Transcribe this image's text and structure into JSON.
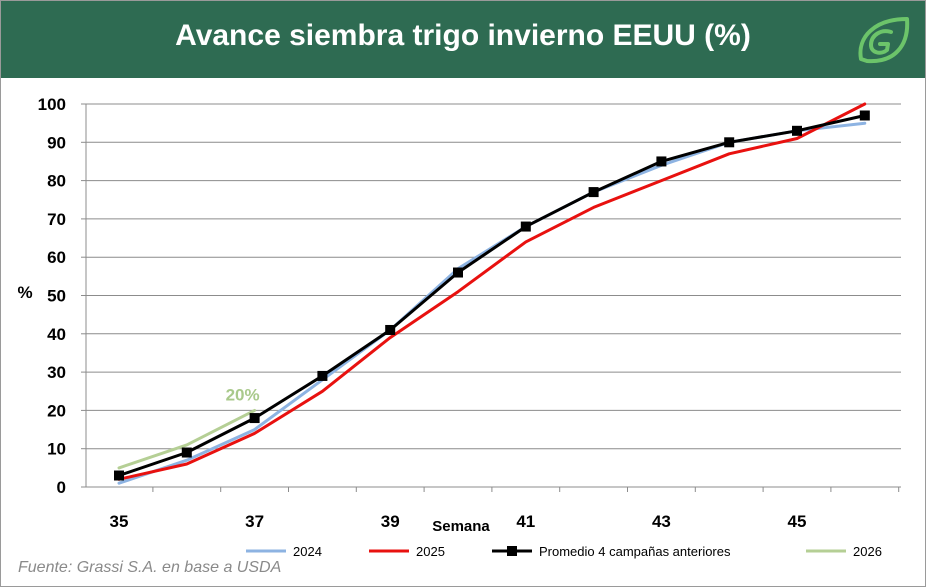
{
  "header": {
    "title": "Avance siembra trigo invierno EEUU (%)"
  },
  "chart_data": {
    "type": "line",
    "xlabel": "Semana",
    "ylabel": "%",
    "xlim": [
      35,
      46
    ],
    "ylim": [
      0,
      100
    ],
    "xticks": [
      "35",
      "37",
      "39",
      "41",
      "43",
      "45"
    ],
    "yticks": [
      "0",
      "10",
      "20",
      "30",
      "40",
      "50",
      "60",
      "70",
      "80",
      "90",
      "100"
    ],
    "grid": "horizontal",
    "legend_position": "bottom",
    "series": [
      {
        "name": "2024",
        "color": "#8db3e2",
        "marker": "none",
        "x": [
          35,
          36,
          37,
          38,
          39,
          40,
          41,
          42,
          43,
          44,
          45,
          46
        ],
        "y": [
          1,
          7,
          15,
          28,
          41,
          57,
          68,
          77,
          84,
          90,
          93,
          95
        ]
      },
      {
        "name": "2025",
        "color": "#e8110f",
        "marker": "none",
        "x": [
          35,
          36,
          37,
          38,
          39,
          40,
          41,
          42,
          43,
          44,
          45,
          46
        ],
        "y": [
          2,
          6,
          14,
          25,
          39,
          51,
          64,
          73,
          80,
          87,
          91,
          100
        ]
      },
      {
        "name": "Promedio 4 campañas anteriores",
        "color": "#000000",
        "marker": "square",
        "x": [
          35,
          36,
          37,
          38,
          39,
          40,
          41,
          42,
          43,
          44,
          45,
          46
        ],
        "y": [
          3,
          9,
          18,
          29,
          41,
          56,
          68,
          77,
          85,
          90,
          93,
          97
        ]
      },
      {
        "name": "2026",
        "color": "#b5cf95",
        "marker": "none",
        "x": [
          35,
          36,
          37
        ],
        "y": [
          5,
          11,
          20
        ]
      }
    ],
    "annotations": [
      {
        "text": "20%",
        "color": "#a9c98b",
        "x": 37,
        "y": 20
      }
    ]
  },
  "footer": {
    "source": "Fuente: Grassi S.A. en base a USDA"
  }
}
